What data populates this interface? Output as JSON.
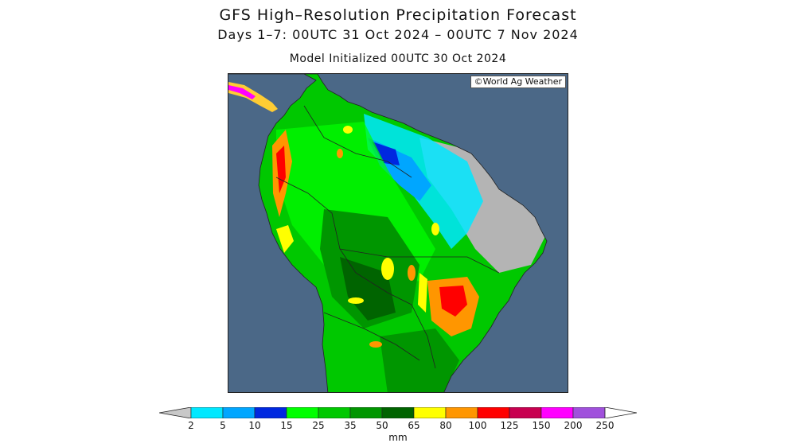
{
  "header": {
    "title": "GFS High–Resolution Precipitation Forecast",
    "subtitle": "Days 1–7: 00UTC 31 Oct 2024 – 00UTC 7 Nov 2024",
    "init_line": "Model Initialized 00UTC 30 Oct 2024"
  },
  "map": {
    "copyright": "©World Ag Weather",
    "ocean_color": "#4b6887",
    "land_no_precip_color": "#b4b4b4"
  },
  "legend": {
    "unit": "mm",
    "ticks": [
      "2",
      "5",
      "10",
      "15",
      "25",
      "35",
      "50",
      "65",
      "80",
      "100",
      "125",
      "150",
      "200",
      "250"
    ],
    "colors": [
      "#00e8ff",
      "#00a6ff",
      "#0028e0",
      "#00ff00",
      "#00c800",
      "#009600",
      "#006400",
      "#ffff00",
      "#ff9600",
      "#ff0000",
      "#c80050",
      "#ff00ff",
      "#a050dc"
    ],
    "under_color": "#c8c8c8",
    "over_color": "#ffffff"
  }
}
